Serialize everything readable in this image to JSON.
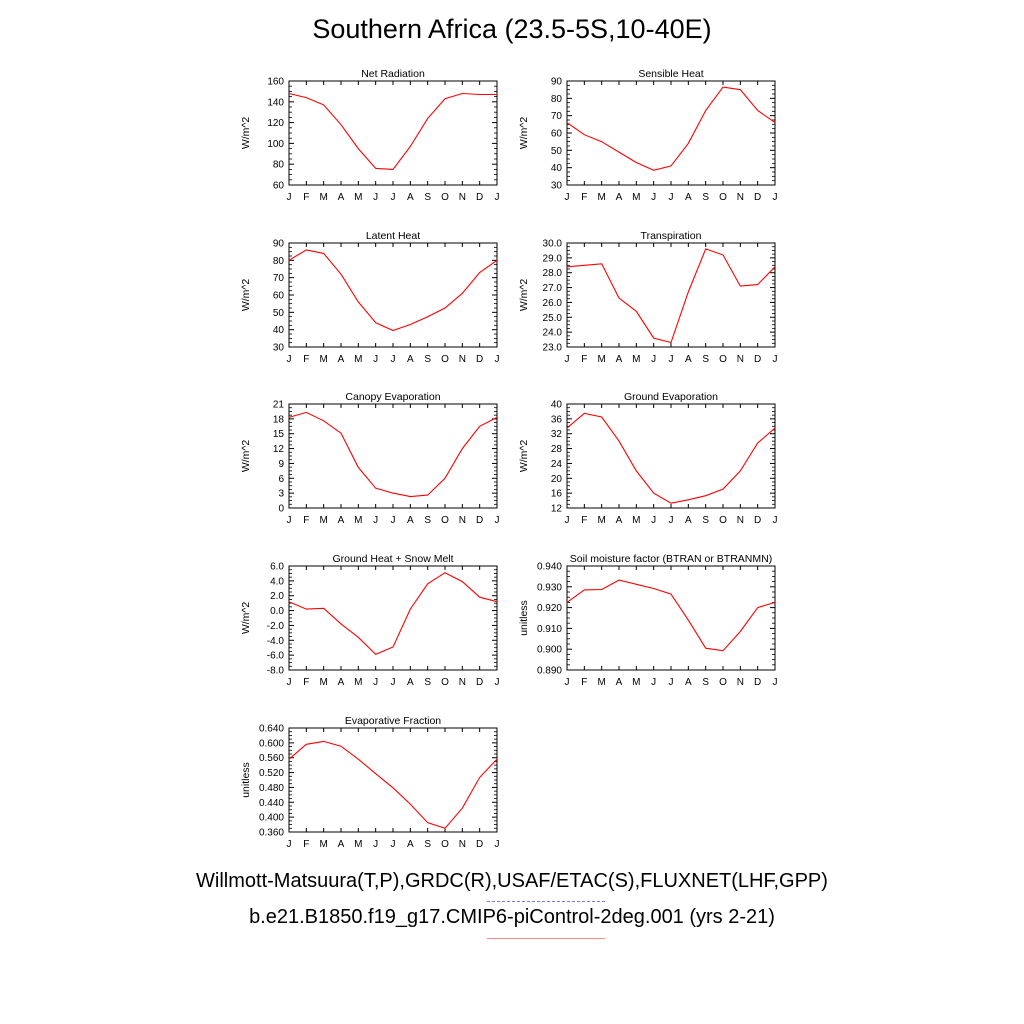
{
  "title": "Southern Africa (23.5-5S,10-40E)",
  "footer": {
    "line1": "Willmott-Matsuura(T,P),GRDC(R),USAF/ETAC(S),FLUXNET(LHF,GPP)",
    "line2": "b.e21.B1850.f19_g17.CMIP6-piControl-2deg.001 (yrs 2-21)"
  },
  "colors": {
    "model_line": "#ff0000",
    "obs_legend": "#7777ee",
    "model_legend": "#ff8888"
  },
  "chart_data": [
    {
      "type": "line",
      "title": "Net Radiation",
      "ylabel": "W/m^2",
      "xlabel": "",
      "categories": [
        "J",
        "F",
        "M",
        "A",
        "M",
        "J",
        "J",
        "A",
        "S",
        "O",
        "N",
        "D",
        "J"
      ],
      "ylim": [
        60,
        160
      ],
      "yticks": [
        60,
        80,
        100,
        120,
        140,
        160
      ],
      "tick_labels": [
        "60",
        "80",
        "100",
        "120",
        "140",
        "160"
      ],
      "values": [
        148,
        144,
        137,
        118,
        95,
        76,
        75,
        97,
        124,
        143,
        148,
        147,
        147
      ]
    },
    {
      "type": "line",
      "title": "Sensible Heat",
      "ylabel": "W/m^2",
      "xlabel": "",
      "categories": [
        "J",
        "F",
        "M",
        "A",
        "M",
        "J",
        "J",
        "A",
        "S",
        "O",
        "N",
        "D",
        "J"
      ],
      "ylim": [
        30,
        90
      ],
      "yticks": [
        30,
        40,
        50,
        60,
        70,
        80,
        90
      ],
      "tick_labels": [
        "30",
        "40",
        "50",
        "60",
        "70",
        "80",
        "90"
      ],
      "values": [
        66,
        59,
        55,
        49,
        43,
        38.5,
        41,
        54,
        73,
        86.5,
        85,
        73,
        66
      ]
    },
    {
      "type": "line",
      "title": "Latent Heat",
      "ylabel": "W/m^2",
      "xlabel": "",
      "categories": [
        "J",
        "F",
        "M",
        "A",
        "M",
        "J",
        "J",
        "A",
        "S",
        "O",
        "N",
        "D",
        "J"
      ],
      "ylim": [
        30,
        90
      ],
      "yticks": [
        30,
        40,
        50,
        60,
        70,
        80,
        90
      ],
      "tick_labels": [
        "30",
        "40",
        "50",
        "60",
        "70",
        "80",
        "90"
      ],
      "values": [
        80,
        86,
        84,
        72,
        56,
        44,
        39.5,
        43,
        47.5,
        52.5,
        61,
        73,
        80
      ]
    },
    {
      "type": "line",
      "title": "Transpiration",
      "ylabel": "W/m^2",
      "xlabel": "",
      "categories": [
        "J",
        "F",
        "M",
        "A",
        "M",
        "J",
        "J",
        "A",
        "S",
        "O",
        "N",
        "D",
        "J"
      ],
      "ylim": [
        23,
        30
      ],
      "yticks": [
        23,
        24,
        25,
        26,
        27,
        28,
        29,
        30
      ],
      "tick_labels": [
        "23.0",
        "24.0",
        "25.0",
        "26.0",
        "27.0",
        "28.0",
        "29.0",
        "30.0"
      ],
      "values": [
        28.4,
        28.5,
        28.6,
        26.3,
        25.4,
        23.6,
        23.3,
        26.7,
        29.6,
        29.2,
        27.1,
        27.2,
        28.4
      ]
    },
    {
      "type": "line",
      "title": "Canopy Evaporation",
      "ylabel": "W/m^2",
      "xlabel": "",
      "categories": [
        "J",
        "F",
        "M",
        "A",
        "M",
        "J",
        "J",
        "A",
        "S",
        "O",
        "N",
        "D",
        "J"
      ],
      "ylim": [
        0,
        21
      ],
      "yticks": [
        0,
        3,
        6,
        9,
        12,
        15,
        18,
        21
      ],
      "tick_labels": [
        "0",
        "3",
        "6",
        "9",
        "12",
        "15",
        "18",
        "21"
      ],
      "values": [
        18.3,
        19.3,
        17.6,
        15.1,
        8.2,
        4.0,
        3.0,
        2.3,
        2.6,
        6.0,
        12.0,
        16.5,
        18.3
      ]
    },
    {
      "type": "line",
      "title": "Ground Evaporation",
      "ylabel": "W/m^2",
      "xlabel": "",
      "categories": [
        "J",
        "F",
        "M",
        "A",
        "M",
        "J",
        "J",
        "A",
        "S",
        "O",
        "N",
        "D",
        "J"
      ],
      "ylim": [
        12,
        40
      ],
      "yticks": [
        12,
        16,
        20,
        24,
        28,
        32,
        36,
        40
      ],
      "tick_labels": [
        "12",
        "16",
        "20",
        "24",
        "28",
        "32",
        "36",
        "40"
      ],
      "values": [
        33.5,
        37.5,
        36.5,
        30,
        22,
        16,
        13.3,
        14.2,
        15.3,
        17.1,
        22,
        29.5,
        33.5
      ]
    },
    {
      "type": "line",
      "title": "Ground Heat + Snow Melt",
      "ylabel": "W/m^2",
      "xlabel": "",
      "categories": [
        "J",
        "F",
        "M",
        "A",
        "M",
        "J",
        "J",
        "A",
        "S",
        "O",
        "N",
        "D",
        "J"
      ],
      "ylim": [
        -8,
        6
      ],
      "yticks": [
        -8,
        -6,
        -4,
        -2,
        0,
        2,
        4,
        6
      ],
      "tick_labels": [
        "-8.0",
        "-6.0",
        "-4.0",
        "-2.0",
        "0.0",
        "2.0",
        "4.0",
        "6.0"
      ],
      "values": [
        1.2,
        0.2,
        0.3,
        -1.8,
        -3.6,
        -5.9,
        -4.9,
        0.2,
        3.6,
        5.1,
        3.9,
        1.8,
        1.2
      ]
    },
    {
      "type": "line",
      "title": "Soil moisture factor (BTRAN or BTRANMN)",
      "ylabel": "unitless",
      "xlabel": "",
      "categories": [
        "J",
        "F",
        "M",
        "A",
        "M",
        "J",
        "J",
        "A",
        "S",
        "O",
        "N",
        "D",
        "J"
      ],
      "ylim": [
        0.89,
        0.94
      ],
      "yticks": [
        0.89,
        0.9,
        0.91,
        0.92,
        0.93,
        0.94
      ],
      "tick_labels": [
        "0.890",
        "0.900",
        "0.910",
        "0.920",
        "0.930",
        "0.940"
      ],
      "values": [
        0.9225,
        0.9285,
        0.9287,
        0.9332,
        0.9312,
        0.9292,
        0.9265,
        0.914,
        0.9005,
        0.8993,
        0.9085,
        0.92,
        0.9225
      ]
    },
    {
      "type": "line",
      "title": "Evaporative Fraction",
      "ylabel": "unitless",
      "xlabel": "",
      "categories": [
        "J",
        "F",
        "M",
        "A",
        "M",
        "J",
        "J",
        "A",
        "S",
        "O",
        "N",
        "D",
        "J"
      ],
      "ylim": [
        0.36,
        0.64
      ],
      "yticks": [
        0.36,
        0.4,
        0.44,
        0.48,
        0.52,
        0.56,
        0.6,
        0.64
      ],
      "tick_labels": [
        "0.360",
        "0.400",
        "0.440",
        "0.480",
        "0.520",
        "0.560",
        "0.600",
        "0.640"
      ],
      "values": [
        0.556,
        0.596,
        0.604,
        0.591,
        0.556,
        0.517,
        0.479,
        0.435,
        0.385,
        0.37,
        0.424,
        0.507,
        0.556
      ]
    }
  ]
}
